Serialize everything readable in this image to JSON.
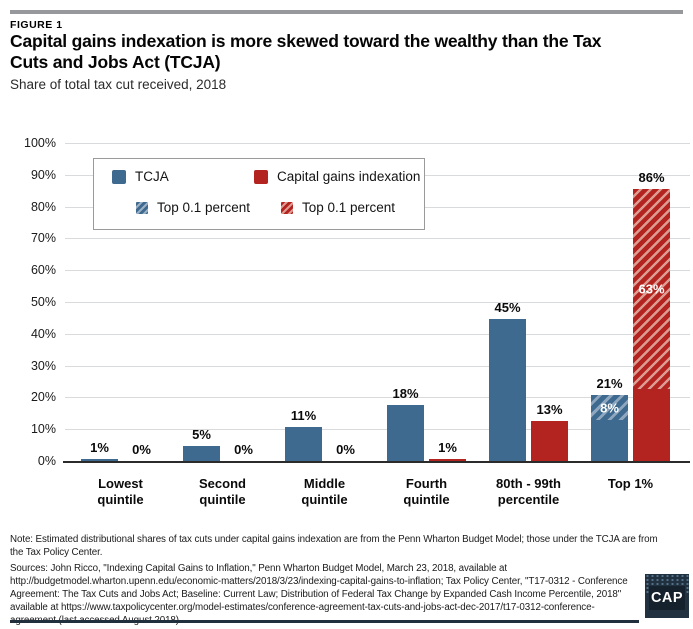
{
  "figure_label": "FIGURE 1",
  "title": "Capital gains indexation is more skewed toward the wealthy than the Tax Cuts and Jobs Act (TCJA)",
  "subtitle": "Share of total tax cut received, 2018",
  "colors": {
    "tcja_blue": "#3e6a8f",
    "indexation_red": "#b3231f",
    "tcja_hatch_light": "#8fa7be",
    "indexation_hatch_light": "#dd9c92",
    "gridline": "#d9dadb",
    "axis": "#2b2b2b",
    "top_rule": "#97989b",
    "bottom_rule": "#22303e"
  },
  "legend": {
    "items": [
      {
        "label": "TCJA",
        "swatch": "solid-blue"
      },
      {
        "label": "Capital gains indexation",
        "swatch": "solid-red"
      },
      {
        "label": "Top 0.1 percent",
        "swatch": "hatch-blue"
      },
      {
        "label": "Top 0.1 percent",
        "swatch": "hatch-red"
      }
    ]
  },
  "chart_data": {
    "type": "bar",
    "title": "Capital gains indexation is more skewed toward the wealthy than the Tax Cuts and Jobs Act (TCJA)",
    "subtitle": "Share of total tax cut received, 2018",
    "categories": [
      "Lowest quintile",
      "Second quintile",
      "Middle quintile",
      "Fourth quintile",
      "80th - 99th percentile",
      "Top 1%"
    ],
    "category_lines": [
      [
        "Lowest",
        "quintile"
      ],
      [
        "Second",
        "quintile"
      ],
      [
        "Middle",
        "quintile"
      ],
      [
        "Fourth",
        "quintile"
      ],
      [
        "80th - 99th",
        "percentile"
      ],
      [
        "Top 1%"
      ]
    ],
    "series": [
      {
        "name": "TCJA",
        "values": [
          1,
          5,
          11,
          18,
          45,
          21
        ],
        "hatch_top01": [
          0,
          0,
          0,
          0,
          0,
          8
        ],
        "hatch_name": "Top 0.1 percent"
      },
      {
        "name": "Capital gains indexation",
        "values": [
          0,
          0,
          0,
          1,
          13,
          86
        ],
        "hatch_top01": [
          0,
          0,
          0,
          0,
          0,
          63
        ],
        "hatch_name": "Top 0.1 percent"
      }
    ],
    "value_label_suffix": "%",
    "y_ticks": [
      "0%",
      "10%",
      "20%",
      "30%",
      "40%",
      "50%",
      "60%",
      "70%",
      "80%",
      "90%",
      "100%"
    ],
    "ylim": [
      0,
      100
    ],
    "grid": true,
    "legend_position": "inside-top-left"
  },
  "note": "Note: Estimated distributional shares of tax cuts under capital gains indexation are from the Penn Wharton Budget Model; those under the TCJA are from the Tax Policy Center.",
  "sources": "Sources: John Ricco, \"Indexing Capital Gains to Inflation,\" Penn Wharton Budget Model, March 23, 2018, available at http://budgetmodel.wharton.upenn.edu/economic-matters/2018/3/23/indexing-capital-gains-to-inflation; Tax Policy Center, \"T17-0312 - Conference Agreement: The Tax Cuts and Jobs Act; Baseline: Current Law; Distribution of Federal Tax Change by Expanded Cash Income Percentile, 2018\" available at https://www.taxpolicycenter.org/model-estimates/conference-agreement-tax-cuts-and-jobs-act-dec-2017/t17-0312-conference-agreement (last accessed August 2018)",
  "logo_text": "CAP"
}
